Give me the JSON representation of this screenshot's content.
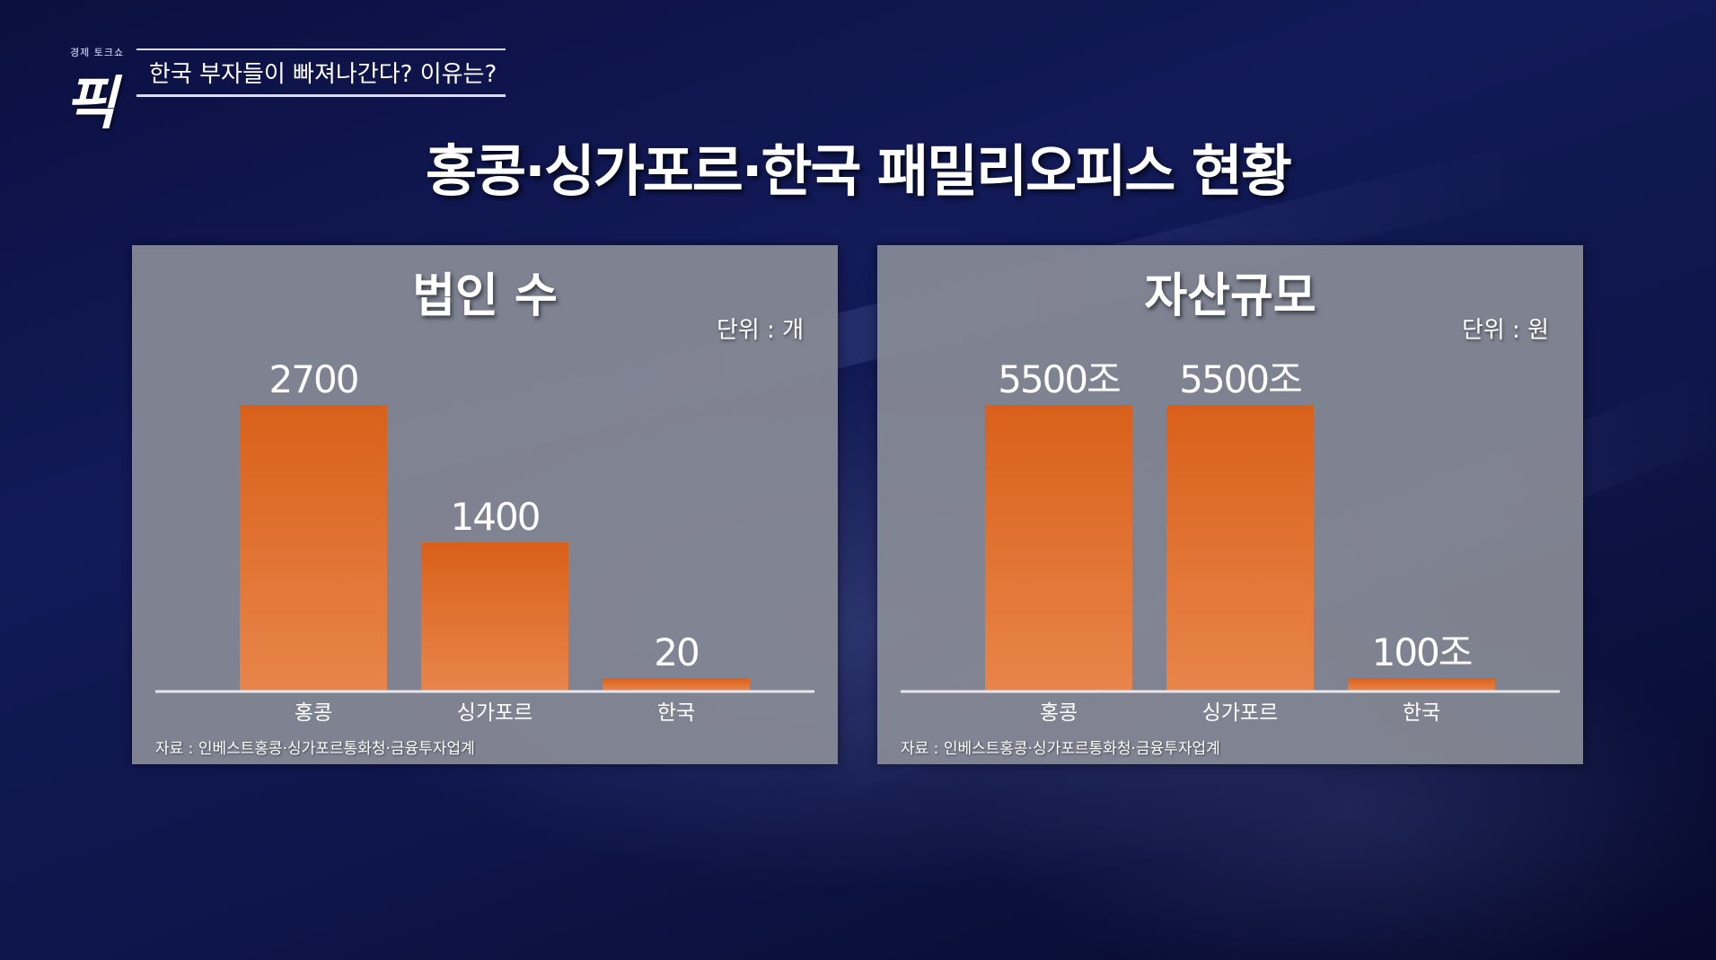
{
  "header": {
    "logo_caption": "경제 토크쇼",
    "logo_glyph": "픽",
    "headline": "한국 부자들이 빠져나간다? 이유는?"
  },
  "main_title": "홍콩·싱가포르·한국 패밀리오피스 현황",
  "colors": {
    "bar_top": "#d9601a",
    "bar_bottom": "#e8854a",
    "panel": "#8c8e98"
  },
  "chart_data": [
    {
      "type": "bar",
      "title": "법인 수",
      "unit_label": "단위 : 개",
      "categories": [
        "홍콩",
        "싱가포르",
        "한국"
      ],
      "values": [
        2700,
        1400,
        20
      ],
      "value_labels": [
        "2700",
        "1400",
        "20"
      ],
      "ylim": [
        0,
        2700
      ],
      "grid": false,
      "source": "자료 : 인베스트홍콩·싱가포르통화청·금융투자업계"
    },
    {
      "type": "bar",
      "title": "자산규모",
      "unit_label": "단위 : 원",
      "categories": [
        "홍콩",
        "싱가포르",
        "한국"
      ],
      "values": [
        5500,
        5500,
        100
      ],
      "value_labels": [
        "5500조",
        "5500조",
        "100조"
      ],
      "ylim": [
        0,
        5500
      ],
      "grid": false,
      "source": "자료 : 인베스트홍콩·싱가포르통화청·금융투자업계"
    }
  ]
}
